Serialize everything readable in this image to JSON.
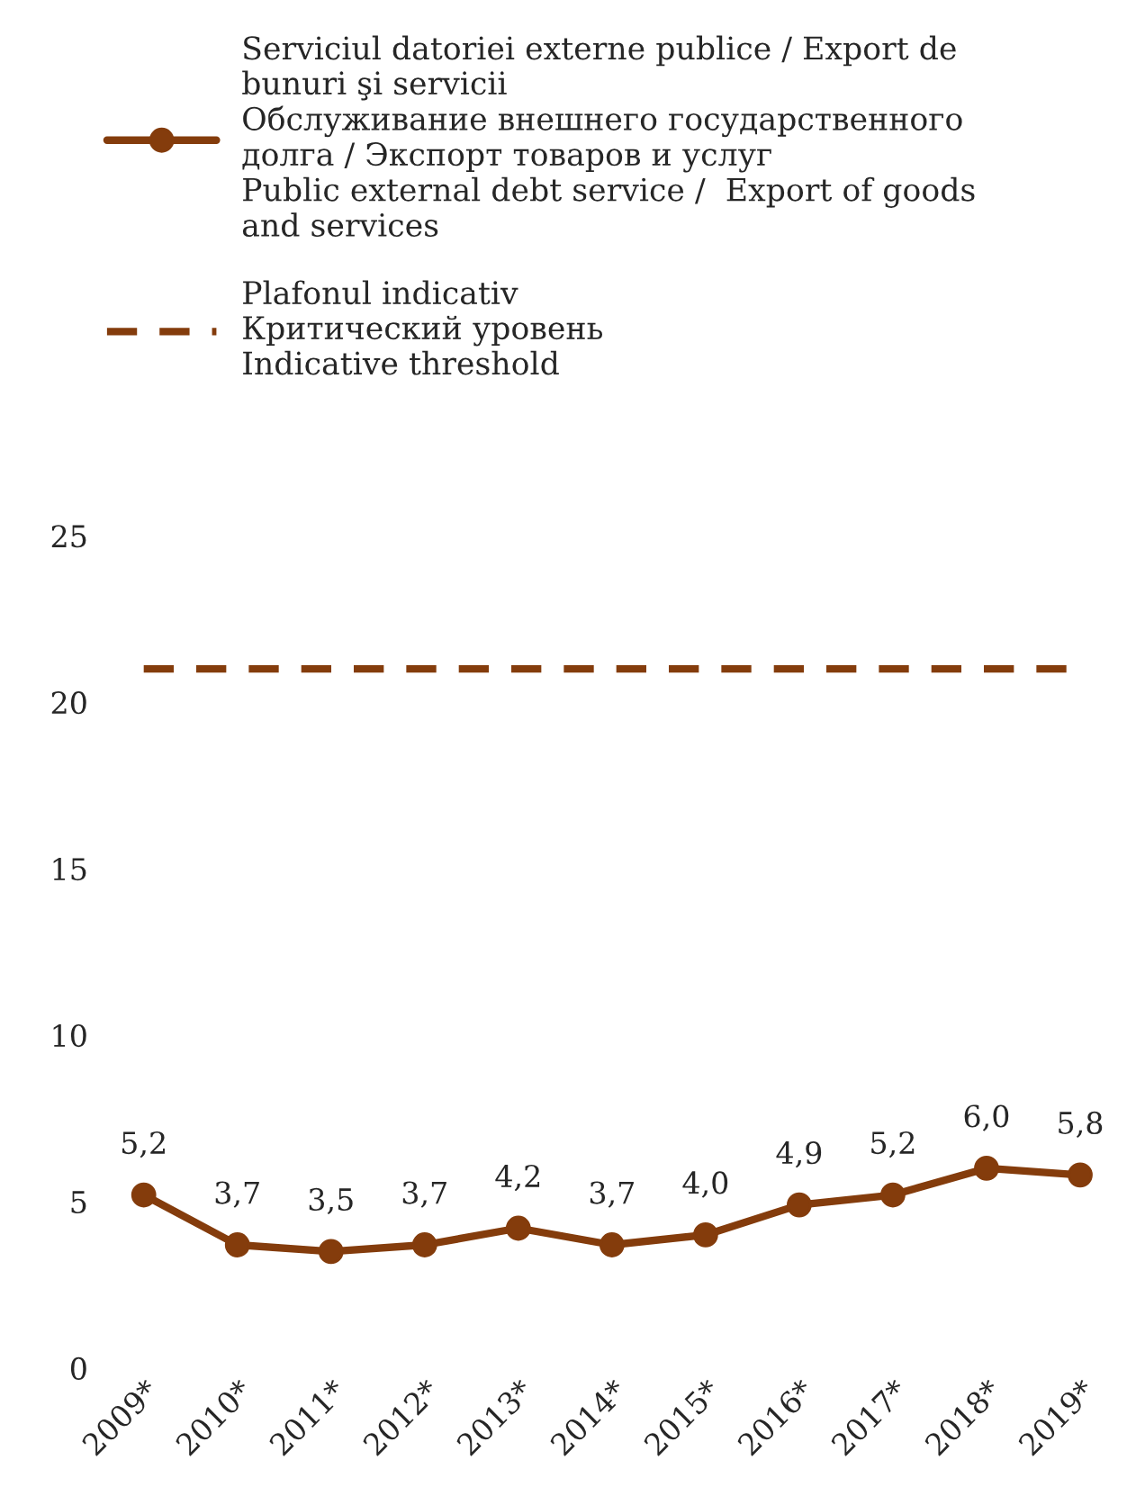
{
  "chart_data": {
    "type": "line",
    "categories": [
      "2009*",
      "2010*",
      "2011*",
      "2012*",
      "2013*",
      "2014*",
      "2015*",
      "2016*",
      "2017*",
      "2018*",
      "2019*"
    ],
    "series": [
      {
        "name": "Serviciul datoriei externe publice / Export de\nbunuri şi servicii\nОбслуживание внешнего государственного\nдолга / Экспорт товаров и услуг\nPublic external debt service /  Export of goods\nand services",
        "color": "#843c0c",
        "marker": "circle",
        "line_style": "solid",
        "values": [
          5.2,
          3.7,
          3.5,
          3.7,
          4.2,
          3.7,
          4.0,
          4.9,
          5.2,
          6.0,
          5.8
        ],
        "value_labels": [
          "5,2",
          "3,7",
          "3,5",
          "3,7",
          "4,2",
          "3,7",
          "4,0",
          "4,9",
          "5,2",
          "6,0",
          "5,8"
        ]
      },
      {
        "name": "Plafonul indicativ\nКритический уровень\nIndicative threshold",
        "color": "#843c0c",
        "marker": "none",
        "line_style": "dashed",
        "values": [
          21,
          21,
          21,
          21,
          21,
          21,
          21,
          21,
          21,
          21,
          21
        ]
      }
    ],
    "ylim": [
      0,
      25
    ],
    "yticks": [
      0,
      5,
      10,
      15,
      20,
      25
    ],
    "grid": false,
    "legend": "top"
  }
}
